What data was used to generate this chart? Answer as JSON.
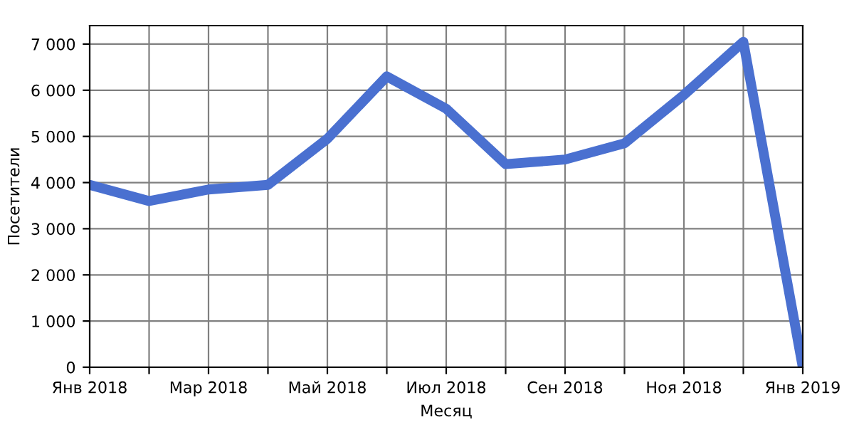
{
  "chart_data": {
    "type": "line",
    "xlabel": "Месяц",
    "ylabel": "Посетители",
    "categories": [
      "Янв 2018",
      null,
      "Мар 2018",
      null,
      "Май 2018",
      null,
      "Июл 2018",
      null,
      "Сен 2018",
      null,
      "Ноя 2018",
      null,
      "Янв 2019"
    ],
    "series": [
      {
        "color": "#4a70d0",
        "values": [
          3950,
          3600,
          3850,
          3950,
          4950,
          6300,
          5600,
          4400,
          4500,
          4850,
          5900,
          7050,
          0
        ]
      }
    ],
    "ylim": [
      0,
      7400
    ],
    "yticks": [
      {
        "value": 0,
        "label": "0"
      },
      {
        "value": 1000,
        "label": "1 000"
      },
      {
        "value": 2000,
        "label": "2 000"
      },
      {
        "value": 3000,
        "label": "3 000"
      },
      {
        "value": 4000,
        "label": "4 000"
      },
      {
        "value": 5000,
        "label": "5 000"
      },
      {
        "value": 6000,
        "label": "6 000"
      },
      {
        "value": 7000,
        "label": "7 000"
      }
    ],
    "grid": true,
    "marker": "none",
    "line_style": "solid",
    "legend": false
  }
}
